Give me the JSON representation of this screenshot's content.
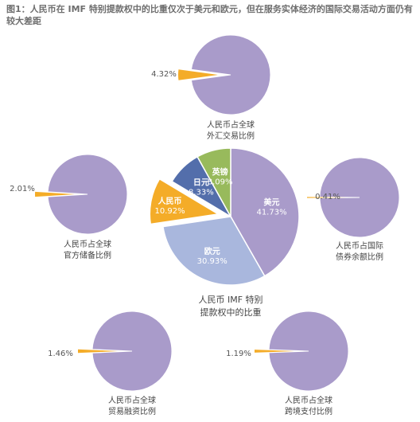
{
  "title": "图1：人民币在 IMF 特别提款权中的比重仅次于美元和欧元，但在服务实体经济的国际交易活动方面仍有较大差距",
  "colors": {
    "main_pie_usd": "#a99bca",
    "main_pie_eur": "#a9b7dd",
    "main_pie_cny": "#f4ac28",
    "main_pie_jpy": "#536eab",
    "main_pie_gbp": "#98ba5c",
    "small_pie_rest": "#a99bca",
    "small_pie_share": "#f4ac28"
  },
  "chart_data": [
    {
      "type": "pie",
      "title": "人民币 IMF 特别提款权中的比重",
      "title_lines": [
        "人民币 IMF 特别",
        "提款权中的比重"
      ],
      "slices": [
        {
          "label": "美元",
          "value": 41.73,
          "value_label": "41.73%"
        },
        {
          "label": "欧元",
          "value": 30.93,
          "value_label": "30.93%"
        },
        {
          "label": "人民币",
          "value": 10.92,
          "value_label": "10.92%",
          "exploded": true
        },
        {
          "label": "日元",
          "value": 8.33,
          "value_label": "8.33%"
        },
        {
          "label": "英镑",
          "value": 8.09,
          "value_label": "8.09%"
        }
      ]
    },
    {
      "type": "pie",
      "title": "人民币占全球外汇交易比例",
      "title_lines": [
        "人民币占全球",
        "外汇交易比例"
      ],
      "slices": [
        {
          "label": "人民币",
          "value": 4.32,
          "value_label": "4.32%"
        }
      ]
    },
    {
      "type": "pie",
      "title": "人民币占全球官方储备比例",
      "title_lines": [
        "人民币占全球",
        "官方储备比例"
      ],
      "slices": [
        {
          "label": "人民币",
          "value": 2.01,
          "value_label": "2.01%"
        }
      ]
    },
    {
      "type": "pie",
      "title": "人民币占国际债券余额比例",
      "title_lines": [
        "人民币占国际",
        "债券余额比例"
      ],
      "slices": [
        {
          "label": "人民币",
          "value": 0.41,
          "value_label": "0.41%"
        }
      ]
    },
    {
      "type": "pie",
      "title": "人民币占全球贸易融资比例",
      "title_lines": [
        "人民币占全球",
        "贸易融资比例"
      ],
      "slices": [
        {
          "label": "人民币",
          "value": 1.46,
          "value_label": "1.46%"
        }
      ]
    },
    {
      "type": "pie",
      "title": "人民币占全球跨境支付比例",
      "title_lines": [
        "人民币占全球",
        "跨境支付比例"
      ],
      "slices": [
        {
          "label": "人民币",
          "value": 1.19,
          "value_label": "1.19%"
        }
      ]
    }
  ]
}
